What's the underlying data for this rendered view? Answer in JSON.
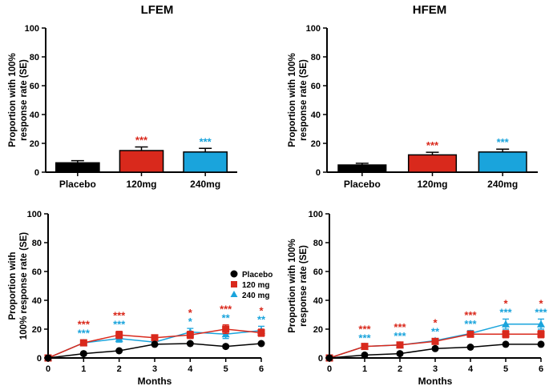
{
  "colors": {
    "placebo": "#000000",
    "mg120": "#d9291c",
    "mg240": "#1aa4dc"
  },
  "titles": {
    "left": "LFEM",
    "right": "HFEM"
  },
  "legend": {
    "placebo": "Placebo",
    "mg120": "120 mg",
    "mg240": "240 mg"
  },
  "chart_data": [
    {
      "id": "lfem-bar",
      "type": "bar",
      "title": "LFEM",
      "categories": [
        "Placebo",
        "120mg",
        "240mg"
      ],
      "values": [
        6.5,
        15,
        14
      ],
      "errors": [
        1.5,
        2.5,
        2.5
      ],
      "significance": [
        "",
        "***",
        "***"
      ],
      "ylabel_lines": [
        "Proportion with 100%",
        "response rate (SE)"
      ],
      "xlabel": "",
      "ylim": [
        0,
        100
      ],
      "yticks": [
        0,
        20,
        40,
        60,
        80,
        100
      ]
    },
    {
      "id": "hfem-bar",
      "type": "bar",
      "title": "HFEM",
      "categories": [
        "Placebo",
        "120mg",
        "240mg"
      ],
      "values": [
        5,
        12,
        14
      ],
      "errors": [
        1.2,
        1.8,
        2
      ],
      "significance": [
        "",
        "***",
        "***"
      ],
      "ylabel_lines": [
        "Proportion with 100%",
        "response rate (SE)"
      ],
      "xlabel": "",
      "ylim": [
        0,
        100
      ],
      "yticks": [
        0,
        20,
        40,
        60,
        80,
        100
      ]
    },
    {
      "id": "lfem-line",
      "type": "line",
      "x": [
        0,
        1,
        2,
        3,
        4,
        5,
        6
      ],
      "xlabel": "Months",
      "ylabel_lines": [
        "Proportion with",
        "100% response rate (SE)"
      ],
      "ylim": [
        0,
        100
      ],
      "yticks": [
        0,
        20,
        40,
        60,
        80,
        100
      ],
      "xlim": [
        0,
        6
      ],
      "series": [
        {
          "name": "Placebo",
          "key": "placebo",
          "values": [
            0,
            3,
            5,
            9.5,
            10,
            8,
            10
          ],
          "errors": [
            0,
            0,
            0,
            0,
            0,
            0,
            0
          ]
        },
        {
          "name": "120 mg",
          "key": "mg120",
          "values": [
            0,
            10.5,
            16,
            14,
            16,
            20,
            17.5
          ],
          "errors": [
            0,
            2,
            2.5,
            2,
            2.5,
            3,
            2.5
          ]
        },
        {
          "name": "240 mg",
          "key": "mg240",
          "values": [
            0,
            10.5,
            13.5,
            11,
            18,
            16.5,
            19
          ],
          "errors": [
            0,
            2,
            2.5,
            2,
            2.5,
            3,
            3
          ]
        }
      ],
      "sig_120": [
        "",
        "***",
        "***",
        "",
        "*",
        "***",
        "*"
      ],
      "sig_240": [
        "",
        "***",
        "***",
        "",
        "*",
        "**",
        "**"
      ],
      "legend_position": "right"
    },
    {
      "id": "hfem-line",
      "type": "line",
      "x": [
        0,
        1,
        2,
        3,
        4,
        5,
        6
      ],
      "xlabel": "Months",
      "ylabel_lines": [
        "Proportion with 100%",
        "response rate (SE)"
      ],
      "ylim": [
        0,
        100
      ],
      "yticks": [
        0,
        20,
        40,
        60,
        80,
        100
      ],
      "xlim": [
        0,
        6
      ],
      "series": [
        {
          "name": "Placebo",
          "key": "placebo",
          "values": [
            0,
            2,
            3,
            6.5,
            7.5,
            9.5,
            9.5
          ],
          "errors": [
            0,
            0,
            0,
            0,
            0,
            0,
            0
          ]
        },
        {
          "name": "120 mg",
          "key": "mg120",
          "values": [
            0,
            8,
            9,
            11.5,
            16.5,
            16.5,
            16.5
          ],
          "errors": [
            0,
            1.2,
            1.5,
            1.5,
            2,
            2.5,
            2.5
          ]
        },
        {
          "name": "240 mg",
          "key": "mg240",
          "values": [
            0,
            8,
            9,
            12,
            17,
            23.5,
            23.5
          ],
          "errors": [
            0,
            1.2,
            1.5,
            1.5,
            2,
            3.5,
            3.5
          ]
        }
      ],
      "sig_120": [
        "",
        "***",
        "***",
        "*",
        "***",
        "*",
        "*"
      ],
      "sig_240": [
        "",
        "***",
        "***",
        "**",
        "***",
        "***",
        "***"
      ]
    }
  ]
}
